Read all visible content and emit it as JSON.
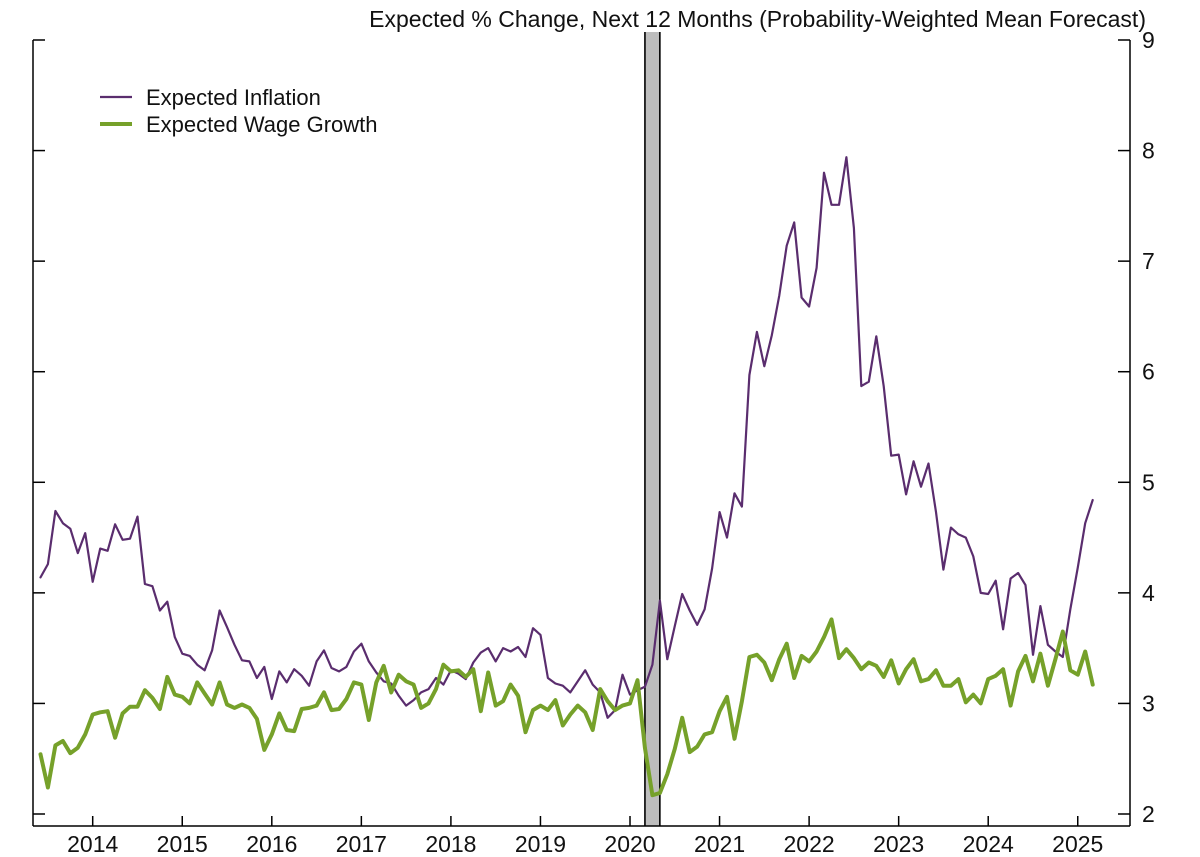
{
  "chart_data": {
    "type": "line",
    "title": "Expected % Change, Next 12 Months (Probability-Weighted Mean Forecast)",
    "xlabel": "",
    "ylabel": "",
    "ylim": [
      2,
      9
    ],
    "yticks": [
      "2",
      "3",
      "4",
      "5",
      "6",
      "7",
      "8",
      "9"
    ],
    "xticks": [
      "2014",
      "2015",
      "2016",
      "2017",
      "2018",
      "2019",
      "2020",
      "2021",
      "2022",
      "2023",
      "2024",
      "2025"
    ],
    "xlim": [
      "2013-05",
      "2025-08"
    ],
    "y_axis_side": "right",
    "grid": false,
    "legend_position": "top-left",
    "recession_shading": {
      "start": "2020-03",
      "end": "2020-04",
      "color": "#bdbdbd"
    },
    "x_dates": [
      "2013-06",
      "2013-07",
      "2013-08",
      "2013-09",
      "2013-10",
      "2013-11",
      "2013-12",
      "2014-01",
      "2014-02",
      "2014-03",
      "2014-04",
      "2014-05",
      "2014-06",
      "2014-07",
      "2014-08",
      "2014-09",
      "2014-10",
      "2014-11",
      "2014-12",
      "2015-01",
      "2015-02",
      "2015-03",
      "2015-04",
      "2015-05",
      "2015-06",
      "2015-07",
      "2015-08",
      "2015-09",
      "2015-10",
      "2015-11",
      "2015-12",
      "2016-01",
      "2016-02",
      "2016-03",
      "2016-04",
      "2016-05",
      "2016-06",
      "2016-07",
      "2016-08",
      "2016-09",
      "2016-10",
      "2016-11",
      "2016-12",
      "2017-01",
      "2017-02",
      "2017-03",
      "2017-04",
      "2017-05",
      "2017-06",
      "2017-07",
      "2017-08",
      "2017-09",
      "2017-10",
      "2017-11",
      "2017-12",
      "2018-01",
      "2018-02",
      "2018-03",
      "2018-04",
      "2018-05",
      "2018-06",
      "2018-07",
      "2018-08",
      "2018-09",
      "2018-10",
      "2018-11",
      "2018-12",
      "2019-01",
      "2019-02",
      "2019-03",
      "2019-04",
      "2019-05",
      "2019-06",
      "2019-07",
      "2019-08",
      "2019-09",
      "2019-10",
      "2019-11",
      "2019-12",
      "2020-01",
      "2020-02",
      "2020-03",
      "2020-04",
      "2020-05",
      "2020-06",
      "2020-07",
      "2020-08",
      "2020-09",
      "2020-10",
      "2020-11",
      "2020-12",
      "2021-01",
      "2021-02",
      "2021-03",
      "2021-04",
      "2021-05",
      "2021-06",
      "2021-07",
      "2021-08",
      "2021-09",
      "2021-10",
      "2021-11",
      "2021-12",
      "2022-01",
      "2022-02",
      "2022-03",
      "2022-04",
      "2022-05",
      "2022-06",
      "2022-07",
      "2022-08",
      "2022-09",
      "2022-10",
      "2022-11",
      "2022-12",
      "2023-01",
      "2023-02",
      "2023-03",
      "2023-04",
      "2023-05",
      "2023-06",
      "2023-07",
      "2023-08",
      "2023-09",
      "2023-10",
      "2023-11",
      "2023-12",
      "2024-01",
      "2024-02",
      "2024-03",
      "2024-04",
      "2024-05",
      "2024-06",
      "2024-07",
      "2024-08",
      "2024-09",
      "2024-10",
      "2024-11",
      "2024-12",
      "2025-01",
      "2025-02",
      "2025-03",
      "2025-04"
    ],
    "series": [
      {
        "name": "Expected Inflation",
        "color": "#5a2d6e",
        "stroke": "thin",
        "values": [
          4.14,
          4.26,
          4.74,
          4.63,
          4.58,
          4.36,
          4.54,
          4.1,
          4.4,
          4.38,
          4.62,
          4.48,
          4.49,
          4.69,
          4.08,
          4.06,
          3.84,
          3.92,
          3.6,
          3.45,
          3.43,
          3.35,
          3.3,
          3.48,
          3.84,
          3.69,
          3.53,
          3.39,
          3.38,
          3.23,
          3.33,
          3.04,
          3.29,
          3.19,
          3.31,
          3.25,
          3.16,
          3.38,
          3.48,
          3.32,
          3.29,
          3.33,
          3.47,
          3.54,
          3.38,
          3.28,
          3.2,
          3.18,
          3.07,
          2.98,
          3.03,
          3.1,
          3.13,
          3.23,
          3.17,
          3.3,
          3.27,
          3.22,
          3.37,
          3.46,
          3.5,
          3.38,
          3.5,
          3.47,
          3.51,
          3.42,
          3.68,
          3.62,
          3.23,
          3.18,
          3.16,
          3.1,
          3.2,
          3.3,
          3.17,
          3.1,
          2.87,
          2.94,
          3.26,
          3.08,
          3.12,
          3.15,
          3.35,
          3.93,
          3.4,
          3.7,
          3.99,
          3.84,
          3.71,
          3.85,
          4.22,
          4.73,
          4.5,
          4.9,
          4.78,
          5.97,
          6.36,
          6.05,
          6.33,
          6.69,
          7.14,
          7.35,
          6.67,
          6.59,
          6.94,
          7.8,
          7.51,
          7.51,
          7.94,
          7.3,
          5.87,
          5.91,
          6.32,
          5.87,
          5.24,
          5.25,
          4.89,
          5.19,
          4.96,
          5.17,
          4.73,
          4.21,
          4.59,
          4.53,
          4.5,
          4.33,
          4.0,
          3.99,
          4.11,
          3.67,
          4.13,
          4.18,
          4.07,
          3.44,
          3.88,
          3.53,
          3.47,
          3.42,
          3.85,
          4.23,
          4.63,
          4.84
        ]
      },
      {
        "name": "Expected Wage Growth",
        "color": "#76a12a",
        "stroke": "thick",
        "values": [
          2.54,
          2.24,
          2.62,
          2.66,
          2.55,
          2.6,
          2.72,
          2.9,
          2.92,
          2.93,
          2.69,
          2.91,
          2.97,
          2.97,
          3.12,
          3.05,
          2.95,
          3.24,
          3.08,
          3.06,
          3.0,
          3.19,
          3.09,
          2.99,
          3.19,
          2.99,
          2.96,
          2.99,
          2.96,
          2.86,
          2.58,
          2.72,
          2.91,
          2.76,
          2.75,
          2.95,
          2.96,
          2.98,
          3.1,
          2.94,
          2.95,
          3.04,
          3.19,
          3.17,
          2.85,
          3.19,
          3.34,
          3.1,
          3.26,
          3.2,
          3.17,
          2.96,
          3.0,
          3.13,
          3.35,
          3.29,
          3.3,
          3.24,
          3.31,
          2.93,
          3.28,
          2.98,
          3.02,
          3.17,
          3.07,
          2.74,
          2.94,
          2.98,
          2.94,
          3.03,
          2.8,
          2.9,
          2.98,
          2.92,
          2.76,
          3.13,
          3.02,
          2.94,
          2.98,
          3.0,
          3.21,
          2.6,
          2.17,
          2.19,
          2.36,
          2.59,
          2.87,
          2.56,
          2.61,
          2.72,
          2.74,
          2.93,
          3.06,
          2.68,
          3.02,
          3.42,
          3.44,
          3.37,
          3.21,
          3.4,
          3.54,
          3.23,
          3.43,
          3.38,
          3.47,
          3.6,
          3.76,
          3.41,
          3.49,
          3.41,
          3.31,
          3.37,
          3.34,
          3.24,
          3.39,
          3.18,
          3.31,
          3.4,
          3.2,
          3.22,
          3.3,
          3.16,
          3.16,
          3.22,
          3.01,
          3.08,
          3.0,
          3.22,
          3.25,
          3.31,
          2.98,
          3.29,
          3.43,
          3.2,
          3.45,
          3.16,
          3.4,
          3.65,
          3.3,
          3.26,
          3.47,
          3.17
        ]
      }
    ]
  }
}
